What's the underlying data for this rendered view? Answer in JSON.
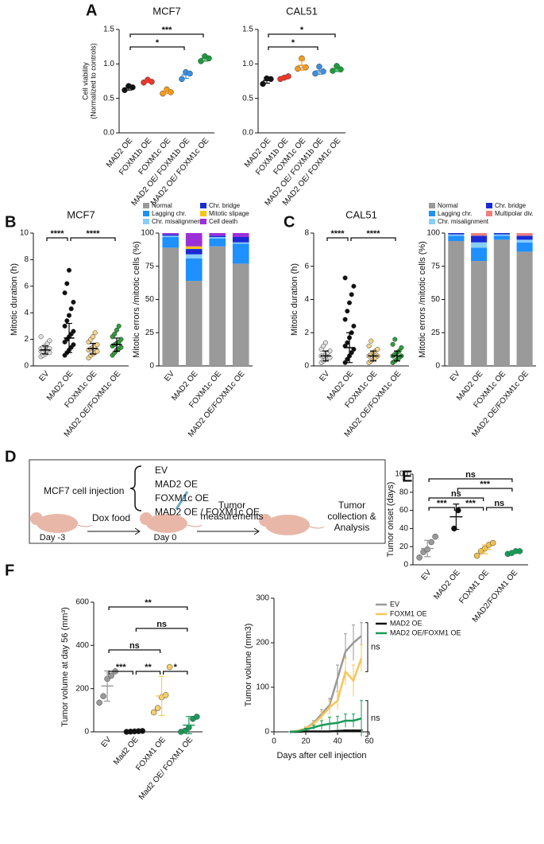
{
  "panels": [
    "A",
    "B",
    "C",
    "D",
    "E",
    "F"
  ],
  "diagram": {
    "title": "MCF7 cell injection",
    "groups": [
      "EV",
      "MAD2 OE",
      "FOXM1c OE",
      "MAD2 OE / FOXM1c OE"
    ],
    "group_colors": [
      "#9a9a9a",
      "#111111",
      "#f2b632",
      "#2e9e3a"
    ],
    "steps": [
      "Dox food",
      "Tumor measurements",
      "Tumor collection & Analysis"
    ],
    "days": [
      "Day -3",
      "Day 0"
    ]
  },
  "chart_data": [
    {
      "type": "dot",
      "title": "MCF7",
      "ylabel": [
        "Cell viability",
        "(Normalized to controls)"
      ],
      "categories": [
        "MAD2 OE",
        "FOXM1b OE",
        "FOXM1c OE",
        "MAD2 OE/ FOXM1b OE",
        "MAD2 OE/ FOXM1c OE"
      ],
      "colors": [
        "#111111",
        "#e8392a",
        "#f39c1f",
        "#3b8fe0",
        "#1e9a3c"
      ],
      "points": [
        [
          0.62,
          0.68,
          0.66
        ],
        [
          0.73,
          0.77,
          0.74
        ],
        [
          0.57,
          0.63,
          0.59
        ],
        [
          0.78,
          0.88,
          0.86
        ],
        [
          1.04,
          1.11,
          1.08
        ]
      ],
      "values": [
        0.65,
        0.75,
        0.6,
        0.84,
        1.08
      ],
      "errors": [
        0.03,
        0.02,
        0.03,
        0.05,
        0.04
      ],
      "ylim": [
        0,
        1.5
      ],
      "yticks": [
        {
          "value": 0,
          "label": "0.0"
        },
        0.5,
        {
          "value": 1,
          "label": "1.0"
        },
        1.5
      ],
      "comparisons": [
        {
          "between": [
            "MAD2 OE",
            "MAD2 OE/ FOXM1c OE"
          ],
          "label": "***"
        },
        {
          "between": [
            "MAD2 OE",
            "MAD2 OE/ FOXM1b OE"
          ],
          "label": "*"
        }
      ]
    },
    {
      "type": "dot",
      "title": "CAL51",
      "categories": [
        "MAD2 OE",
        "FOXM1b OE",
        "FOXM1c OE",
        "MAD2 OE/ FOXM1b OE",
        "MAD2 OE/ FOXM1c OE"
      ],
      "colors": [
        "#111111",
        "#e8392a",
        "#f39c1f",
        "#3b8fe0",
        "#1e9a3c"
      ],
      "points": [
        [
          0.71,
          0.79,
          0.78
        ],
        [
          0.78,
          0.8,
          0.82
        ],
        [
          0.93,
          1.08,
          0.95
        ],
        [
          0.86,
          0.96,
          0.89
        ],
        [
          0.9,
          0.97,
          0.92
        ]
      ],
      "values": [
        0.76,
        0.8,
        0.98,
        0.9,
        0.93
      ],
      "errors": [
        0.04,
        0.02,
        0.07,
        0.05,
        0.04
      ],
      "ylim": [
        0,
        1.5
      ],
      "yticks": [
        {
          "value": 0,
          "label": "0.0"
        },
        0.5,
        {
          "value": 1,
          "label": "1.0"
        },
        1.5
      ],
      "comparisons": [
        {
          "between": [
            "MAD2 OE",
            "MAD2 OE/ FOXM1c OE"
          ],
          "label": "*"
        },
        {
          "between": [
            "MAD2 OE",
            "MAD2 OE/ FOXM1b OE"
          ],
          "label": "*"
        }
      ]
    },
    {
      "type": "dot",
      "title": "MCF7",
      "ylabel": "Mitotic duration (h)",
      "categories": [
        "EV",
        "MAD2 OE",
        "FOXM1c OE",
        "MAD2 OE/FOXM1c OE"
      ],
      "colors": [
        "#e0e0e0",
        "#111111",
        "#f6d58e",
        "#2e9e3a"
      ],
      "points": [
        [
          0.7,
          0.8,
          0.9,
          1.0,
          1.0,
          1.1,
          1.1,
          1.2,
          1.2,
          1.3,
          1.3,
          1.4,
          1.5,
          1.7,
          1.9,
          2.2
        ],
        [
          0.8,
          1.0,
          1.2,
          1.4,
          1.6,
          1.8,
          2.0,
          2.2,
          2.4,
          2.6,
          3.0,
          3.4,
          3.8,
          4.3,
          4.8,
          5.5,
          6.2,
          7.2
        ],
        [
          0.6,
          0.8,
          0.9,
          1.0,
          1.1,
          1.2,
          1.3,
          1.4,
          1.5,
          1.6,
          1.8,
          2.0,
          2.2,
          2.5
        ],
        [
          0.8,
          1.0,
          1.2,
          1.3,
          1.4,
          1.5,
          1.6,
          1.7,
          1.8,
          2.0,
          2.2,
          2.4,
          2.7,
          3.0
        ]
      ],
      "values": [
        1.2,
        2.1,
        1.3,
        1.6
      ],
      "errors": [
        0.3,
        1.1,
        0.4,
        0.5
      ],
      "ylim": [
        0,
        10
      ],
      "yticks": [
        0,
        2,
        4,
        6,
        8,
        10
      ],
      "comparisons": [
        {
          "between": [
            "EV",
            "MAD2 OE"
          ],
          "label": "****"
        },
        {
          "between": [
            "MAD2 OE",
            "MAD2 OE/FOXM1c OE"
          ],
          "label": "****"
        }
      ]
    },
    {
      "type": "stacked_bar",
      "ylabel": "Mitotic errors /mitotic cells (%)",
      "categories": [
        "EV",
        "MAD2 OE",
        "FOXM1c OE",
        "MAD2 OE/FOXM1c OE"
      ],
      "series": [
        {
          "name": "Normal",
          "color": "#9a9a9a",
          "values": [
            89,
            64,
            90,
            77
          ]
        },
        {
          "name": "Lagging chr.",
          "color": "#1e90ff",
          "values": [
            8,
            17,
            6,
            15
          ]
        },
        {
          "name": "Chr. misalignment",
          "color": "#87cefa",
          "values": [
            1,
            3,
            1,
            1
          ]
        },
        {
          "name": "Chr. bridge",
          "color": "#1a2bd6",
          "values": [
            1,
            4,
            1,
            4
          ]
        },
        {
          "name": "Mitotic slipage",
          "color": "#f5c518",
          "values": [
            0,
            2,
            0,
            0
          ]
        },
        {
          "name": "Cell death",
          "color": "#9b30d9",
          "values": [
            1,
            10,
            2,
            3
          ]
        }
      ],
      "ylim": [
        0,
        100
      ],
      "yticks": [
        0,
        25,
        50,
        75,
        100
      ]
    },
    {
      "type": "dot",
      "title": "CAL51",
      "ylabel": "Mitotic duration (h)",
      "categories": [
        "EV",
        "MAD2 OE",
        "FOXM1c OE",
        "MAD2 OE/FOXM1c OE"
      ],
      "colors": [
        "#e0e0e0",
        "#111111",
        "#f6d58e",
        "#2e9e3a"
      ],
      "points": [
        [
          0.2,
          0.3,
          0.4,
          0.5,
          0.5,
          0.6,
          0.6,
          0.7,
          0.8,
          0.9,
          1.0,
          1.2,
          1.4
        ],
        [
          0.2,
          0.4,
          0.6,
          0.8,
          1.0,
          1.2,
          1.4,
          1.7,
          2.0,
          2.4,
          2.8,
          3.3,
          3.8,
          4.3,
          4.8,
          5.3
        ],
        [
          0.2,
          0.3,
          0.4,
          0.5,
          0.6,
          0.6,
          0.7,
          0.8,
          0.9,
          1.0,
          1.2,
          1.5
        ],
        [
          0.2,
          0.3,
          0.4,
          0.5,
          0.6,
          0.6,
          0.7,
          0.8,
          0.9,
          1.1,
          1.3,
          1.6
        ]
      ],
      "values": [
        0.6,
        1.1,
        0.6,
        0.6
      ],
      "errors": [
        0.3,
        0.9,
        0.3,
        0.3
      ],
      "ylim": [
        0,
        8
      ],
      "yticks": [
        0,
        2,
        4,
        6,
        8
      ],
      "comparisons": [
        {
          "between": [
            "EV",
            "MAD2 OE"
          ],
          "label": "****"
        },
        {
          "between": [
            "MAD2 OE",
            "MAD2 OE/FOXM1c OE"
          ],
          "label": "****"
        }
      ]
    },
    {
      "type": "stacked_bar",
      "ylabel": "Mitotic errors /mitotic cells (%)",
      "categories": [
        "EV",
        "MAD2 OE",
        "FOXM1c OE",
        "MAD2 OE/FOXM1c OE"
      ],
      "series": [
        {
          "name": "Normal",
          "color": "#9a9a9a",
          "values": [
            94,
            79,
            95,
            86
          ]
        },
        {
          "name": "Lagging chr.",
          "color": "#1e90ff",
          "values": [
            4,
            10,
            3,
            7
          ]
        },
        {
          "name": "Chr. misalignment",
          "color": "#87cefa",
          "values": [
            1,
            4,
            1,
            2
          ]
        },
        {
          "name": "Chr. bridge",
          "color": "#1a2bd6",
          "values": [
            1,
            5,
            1,
            3
          ]
        },
        {
          "name": "Multipolar div.",
          "color": "#f08080",
          "values": [
            0,
            2,
            0,
            2
          ]
        }
      ],
      "ylim": [
        0,
        100
      ],
      "yticks": [
        0,
        25,
        50,
        75,
        100
      ]
    },
    {
      "type": "dot",
      "ylabel": "Tumor onset (days)",
      "categories": [
        "EV",
        "MAD2 OE",
        "FOXM1 OE",
        "MAD2/FOXM1 OE"
      ],
      "colors": [
        "#9a9a9a",
        "#111111",
        "#f2c14e",
        "#1a9a5a"
      ],
      "points": [
        [
          8,
          14,
          17,
          25,
          31
        ],
        [
          40,
          60
        ],
        [
          10,
          15,
          18,
          22,
          24
        ],
        [
          12,
          13,
          15,
          15
        ]
      ],
      "values": [
        18,
        53,
        17,
        14
      ],
      "errors": [
        9,
        14,
        5,
        1.5
      ],
      "ylim": [
        0,
        100
      ],
      "yticks": [
        0,
        20,
        40,
        60,
        80,
        100
      ],
      "comparisons": [
        {
          "between": [
            "EV",
            "MAD2/FOXM1 OE"
          ],
          "label": "ns"
        },
        {
          "between": [
            "MAD2 OE",
            "MAD2/FOXM1 OE"
          ],
          "label": "***"
        },
        {
          "between": [
            "EV",
            "FOXM1 OE"
          ],
          "label": "ns"
        },
        {
          "between": [
            "EV",
            "MAD2 OE"
          ],
          "label": "***"
        },
        {
          "between": [
            "MAD2 OE",
            "FOXM1 OE"
          ],
          "label": "***"
        },
        {
          "between": [
            "FOXM1 OE",
            "MAD2/FOXM1 OE"
          ],
          "label": "ns"
        }
      ]
    },
    {
      "type": "dot",
      "ylabel": "Tumor volume at day 56 (mm³)",
      "categories": [
        "EV",
        "Mad2 OE",
        "FOXM1 OE",
        "Mad2 OE/ FOXM1 OE"
      ],
      "colors": [
        "#9a9a9a",
        "#111111",
        "#f7cf6a",
        "#1a9a5a"
      ],
      "points": [
        [
          135,
          165,
          245,
          260,
          280
        ],
        [
          0,
          1,
          2,
          3,
          4
        ],
        [
          90,
          110,
          160,
          170,
          300
        ],
        [
          0,
          5,
          20,
          60,
          70
        ]
      ],
      "values": [
        212,
        2,
        166,
        31
      ],
      "errors": [
        70,
        2,
        90,
        40
      ],
      "ylim": [
        0,
        600
      ],
      "yticks": [
        0,
        200,
        400,
        600
      ],
      "comparisons": [
        {
          "between": [
            "EV",
            "Mad2 OE/ FOXM1 OE"
          ],
          "label": "**"
        },
        {
          "between": [
            "Mad2 OE",
            "Mad2 OE/ FOXM1 OE"
          ],
          "label": "ns"
        },
        {
          "between": [
            "EV",
            "FOXM1 OE"
          ],
          "label": "ns"
        },
        {
          "between": [
            "EV",
            "Mad2 OE"
          ],
          "label": "***"
        },
        {
          "between": [
            "Mad2 OE",
            "FOXM1 OE"
          ],
          "label": "**"
        },
        {
          "between": [
            "FOXM1 OE",
            "Mad2 OE/ FOXM1 OE"
          ],
          "label": "*"
        }
      ]
    },
    {
      "type": "line",
      "xlabel": "Days after cell injection",
      "ylabel": "Tumor volume (mm3)",
      "x": [
        10,
        15,
        20,
        25,
        30,
        35,
        40,
        45,
        50,
        55
      ],
      "series": [
        {
          "name": "EV",
          "color": "#999999",
          "values": [
            0,
            2,
            8,
            20,
            40,
            60,
            120,
            180,
            200,
            215
          ],
          "errors": [
            0,
            1,
            3,
            5,
            10,
            15,
            30,
            40,
            40,
            30
          ]
        },
        {
          "name": "FOXM1 OE",
          "color": "#f7c65a",
          "values": [
            0,
            2,
            8,
            18,
            35,
            55,
            70,
            135,
            115,
            165
          ],
          "errors": [
            0,
            1,
            3,
            5,
            10,
            15,
            20,
            30,
            35,
            30
          ]
        },
        {
          "name": "MAD2 OE",
          "color": "#111111",
          "values": [
            0,
            0,
            1,
            1,
            1,
            1,
            2,
            3,
            3,
            3
          ],
          "errors": [
            0,
            0,
            0,
            0,
            0,
            0,
            1,
            1,
            1,
            1
          ]
        },
        {
          "name": "MAD2 OE/FOXM1 OE",
          "color": "#1a9a5a",
          "values": [
            0,
            1,
            5,
            10,
            15,
            18,
            20,
            25,
            25,
            30
          ],
          "errors": [
            0,
            1,
            3,
            5,
            10,
            15,
            15,
            15,
            15,
            40
          ]
        }
      ],
      "xlim": [
        0,
        60
      ],
      "xticks": [
        0,
        20,
        40,
        60
      ],
      "ylim": [
        0,
        300
      ],
      "yticks": [
        0,
        100,
        200,
        300
      ],
      "comparisons": [
        {
          "between": [
            "EV",
            "FOXM1 OE"
          ],
          "label": "ns"
        },
        {
          "between": [
            "MAD2 OE/FOXM1 OE",
            "MAD2 OE"
          ],
          "label": "ns"
        }
      ]
    }
  ]
}
